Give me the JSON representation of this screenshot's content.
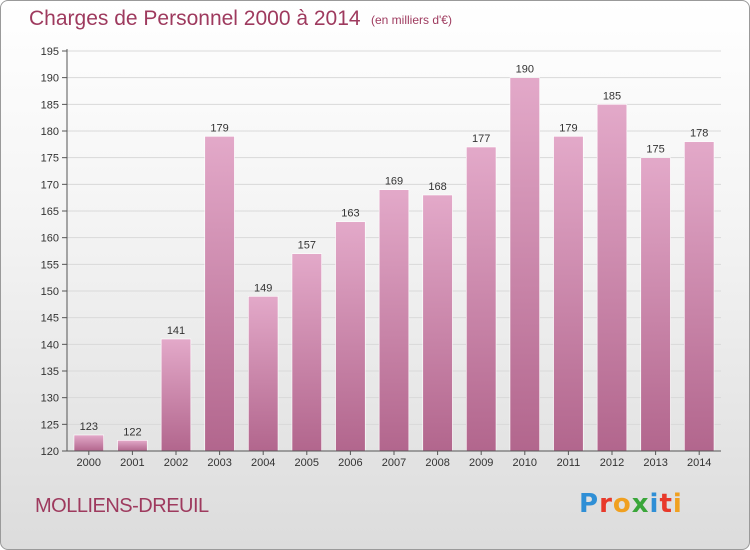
{
  "header": {
    "title": "Charges de Personnel 2000 à 2014",
    "subtitle": "(en milliers d'€)"
  },
  "footer": {
    "commune": "MOLLIENS-DREUIL",
    "logo_letters": [
      {
        "char": "P",
        "color": "#2f8fd6"
      },
      {
        "char": "r",
        "color": "#e8392a"
      },
      {
        "char": "o",
        "color": "#f0a020"
      },
      {
        "char": "x",
        "color": "#3aa63a"
      },
      {
        "char": "i",
        "color": "#2f8fd6"
      },
      {
        "char": "t",
        "color": "#e8392a"
      },
      {
        "char": "i",
        "color": "#f0a020"
      }
    ]
  },
  "colors": {
    "bar_top": "#e3a9c9",
    "bar_bottom": "#b2668d",
    "gridline": "#d9d9d9",
    "axis": "#555555",
    "title": "#9e3a5e"
  },
  "chart_data": {
    "type": "bar",
    "title": "Charges de Personnel 2000 à 2014",
    "subtitle": "(en milliers d'€)",
    "categories": [
      "2000",
      "2001",
      "2002",
      "2003",
      "2004",
      "2005",
      "2006",
      "2007",
      "2008",
      "2009",
      "2010",
      "2011",
      "2012",
      "2013",
      "2014"
    ],
    "values": [
      123,
      122,
      141,
      179,
      149,
      157,
      163,
      169,
      168,
      177,
      190,
      179,
      185,
      175,
      178
    ],
    "ylim": [
      120,
      195
    ],
    "yticks": [
      120,
      125,
      130,
      135,
      140,
      145,
      150,
      155,
      160,
      165,
      170,
      175,
      180,
      185,
      190,
      195
    ],
    "grid": true,
    "data_labels": true
  }
}
